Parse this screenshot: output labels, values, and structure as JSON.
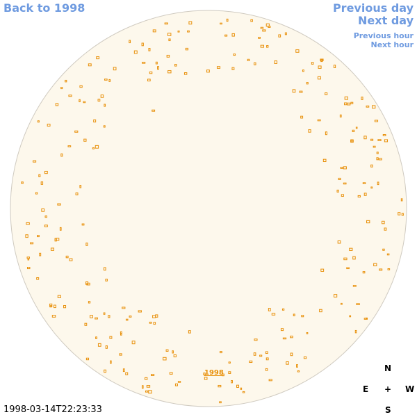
{
  "nav": {
    "back": "Back to 1998",
    "previous_day": "Previous day",
    "next_day": "Next day",
    "previous_hour": "Previous hour",
    "next_hour": "Next hour"
  },
  "disk": {
    "label": "1998"
  },
  "compass": {
    "north": "N",
    "east": "E",
    "center": "+",
    "west": "W",
    "south": "S"
  },
  "timestamp": "1998-03-14T22:23:33"
}
